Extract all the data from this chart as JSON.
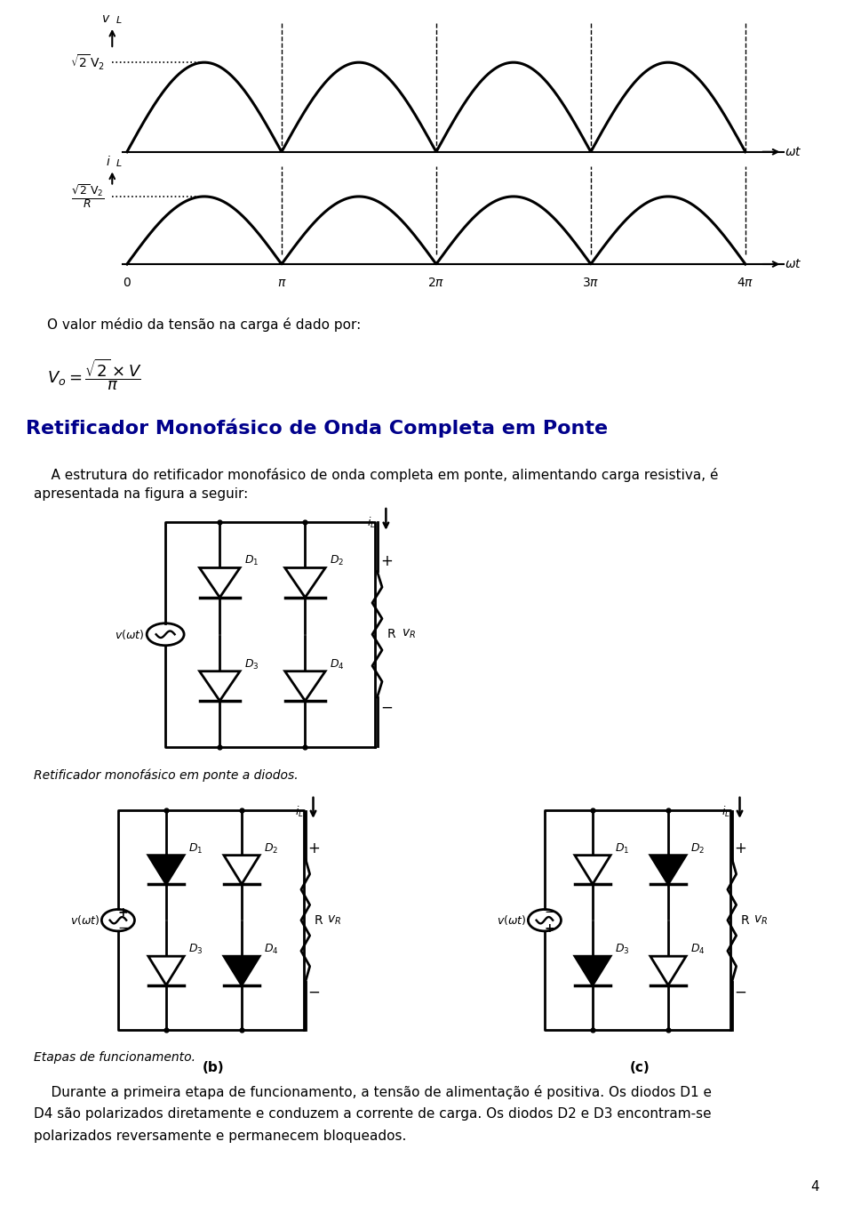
{
  "bg_color": "#ffffff",
  "title_color": "#00008B",
  "text_color": "#000000",
  "page_number": "4",
  "heading": "Retificador Monofásico de Onda Completa em Ponte",
  "para1_line1": "    A estrutura do retificador monofásico de onda completa em ponte, alimentando carga resistiva, é",
  "para1_line2": "apresentada na figura a seguir:",
  "caption1": "Retificador monofásico em ponte a diodos.",
  "caption2": "Etapas de funcionamento.",
  "para2_line1": "    Durante a primeira etapa de funcionamento, a tensão de alimentação é positiva. Os diodos D1 e",
  "para2_line2": "D4 são polarizados diretamente e conduzem a corrente de carga. Os diodos D2 e D3 encontram-se",
  "para2_line3": "polarizados reversamente e permanecem bloqueados.",
  "label_vL": "v L",
  "label_sqrt2V2_top": "\\u221a2 V",
  "label_sqrt2V2_bot": "        2",
  "label_iL": "i L",
  "label_sqrt2V2R_top": "\\u221a2 V",
  "label_sqrt2V2R_mid": "         2",
  "label_sqrt2V2R_div": "R",
  "label_wt": "\\u03c9t",
  "label_0": "0",
  "label_pi": "\\u03c0",
  "label_2pi": "2\\u03c0",
  "label_3pi": "3\\u03c0",
  "label_4pi": "4\\u03c0",
  "text_medio": "O valor médio da tensão na carga é dado por:",
  "label_b": "(b)",
  "label_c": "(c)"
}
